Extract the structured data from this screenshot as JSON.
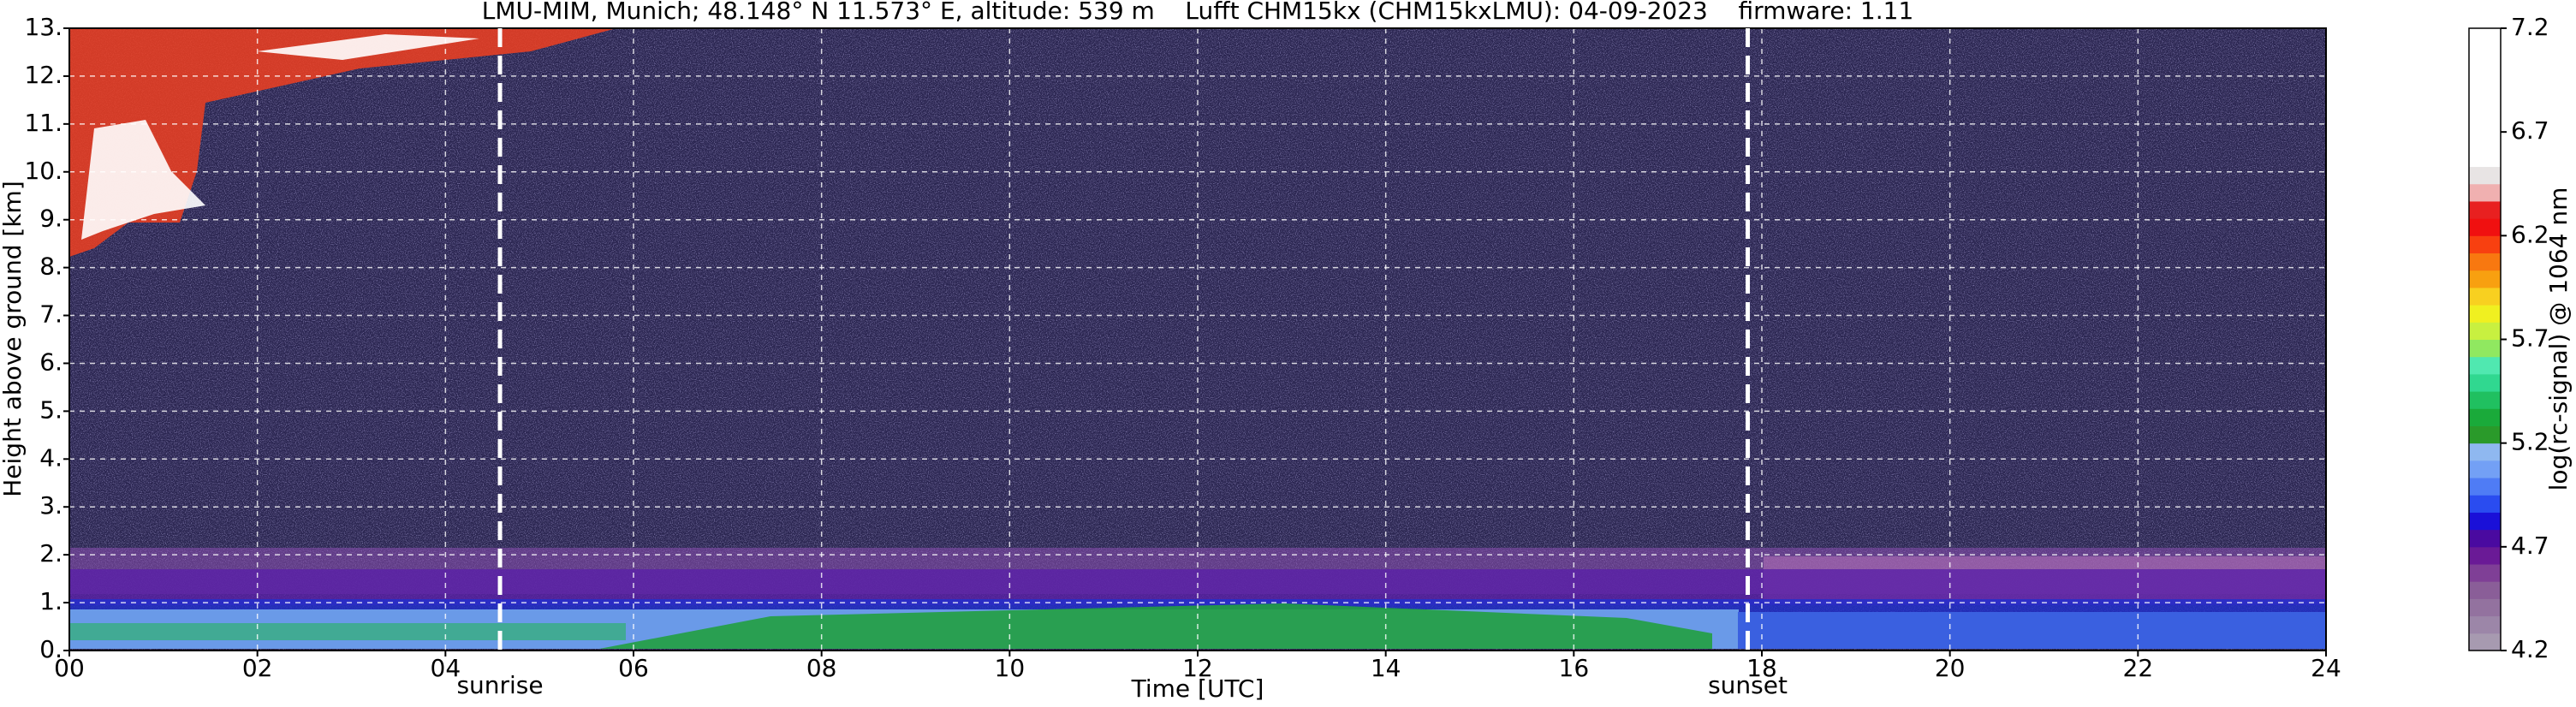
{
  "chart_data": {
    "type": "heatmap",
    "title": "LMU-MIM, Munich; 48.148° N 11.573° E, altitude: 539 m    Lufft CHM15kx (CHM15kxLMU): 04-09-2023    firmware: 1.11",
    "x_label": "Time [UTC]",
    "y_label": "Height above ground [km]",
    "xlim": [
      0,
      24
    ],
    "xticks": [
      {
        "value": 0,
        "label": "00"
      },
      {
        "value": 2,
        "label": "02"
      },
      {
        "value": 4,
        "label": "04"
      },
      {
        "value": 6,
        "label": "06"
      },
      {
        "value": 8,
        "label": "08"
      },
      {
        "value": 10,
        "label": "10"
      },
      {
        "value": 12,
        "label": "12"
      },
      {
        "value": 14,
        "label": "14"
      },
      {
        "value": 16,
        "label": "16"
      },
      {
        "value": 18,
        "label": "18"
      },
      {
        "value": 20,
        "label": "20"
      },
      {
        "value": 22,
        "label": "22"
      },
      {
        "value": 24,
        "label": "24"
      }
    ],
    "ylim": [
      0,
      13
    ],
    "yticks": [
      {
        "value": 0,
        "label": "0."
      },
      {
        "value": 1,
        "label": "1."
      },
      {
        "value": 2,
        "label": "2."
      },
      {
        "value": 3,
        "label": "3."
      },
      {
        "value": 4,
        "label": "4."
      },
      {
        "value": 5,
        "label": "5."
      },
      {
        "value": 6,
        "label": "6."
      },
      {
        "value": 7,
        "label": "7."
      },
      {
        "value": 8,
        "label": "8."
      },
      {
        "value": 9,
        "label": "9."
      },
      {
        "value": 10,
        "label": "10."
      },
      {
        "value": 11,
        "label": "11."
      },
      {
        "value": 12,
        "label": "12."
      },
      {
        "value": 13,
        "label": "13."
      }
    ],
    "grid": true,
    "annotations": [
      {
        "text": "sunrise",
        "x": 4.58
      },
      {
        "text": "sunset",
        "x": 17.85
      }
    ],
    "colorbar": {
      "label": "log(rc-signal) @ 1064 nm",
      "lim": [
        4.2,
        7.2
      ],
      "ticks": [
        4.2,
        4.7,
        5.2,
        5.7,
        6.2,
        6.7,
        7.2
      ],
      "colors": [
        "#a79ab0",
        "#9c86a8",
        "#93729f",
        "#8a5e98",
        "#7f3f96",
        "#6a1a96",
        "#4a0aa0",
        "#1a10d8",
        "#2a4cf0",
        "#4f7cf5",
        "#73a0f5",
        "#8fb8f0",
        "#2a9a2a",
        "#1aaa3a",
        "#20c060",
        "#30d890",
        "#50e8b0",
        "#90e860",
        "#c8f040",
        "#f0f020",
        "#f8d020",
        "#f8a010",
        "#f87810",
        "#f84010",
        "#f01010",
        "#e82020",
        "#f0b0b0",
        "#e8e4e4",
        "#ffffff",
        "#ffffff",
        "#ffffff",
        "#ffffff",
        "#ffffff",
        "#ffffff",
        "#ffffff",
        "#ffffff"
      ]
    }
  }
}
